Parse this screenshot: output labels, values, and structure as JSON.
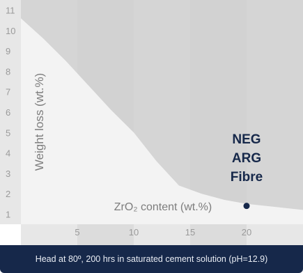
{
  "chart_data": {
    "type": "area",
    "x_axis_label": "ZrO₂ content (wt.%)",
    "y_axis_label": "Weight loss (wt.%)",
    "x_ticks": [
      5,
      10,
      15,
      20
    ],
    "y_ticks": [
      1,
      2,
      3,
      4,
      5,
      6,
      7,
      8,
      9,
      10,
      11
    ],
    "xlim": [
      0,
      25
    ],
    "ylim": [
      0.5,
      11.5
    ],
    "series": [
      {
        "points": [
          [
            0,
            10.6
          ],
          [
            2,
            9.6
          ],
          [
            4,
            8.5
          ],
          [
            6,
            7.3
          ],
          [
            8,
            6.1
          ],
          [
            10,
            5.0
          ],
          [
            12,
            3.6
          ],
          [
            14,
            2.4
          ],
          [
            16,
            2.0
          ],
          [
            18,
            1.7
          ],
          [
            20,
            1.5
          ],
          [
            25,
            1.2
          ]
        ]
      }
    ],
    "highlight_point": {
      "x": 20,
      "y": 1.4,
      "label_lines": [
        "NEG",
        "ARG",
        "Fibre"
      ]
    },
    "colors": {
      "background_band_light": "#e7e7e7",
      "background_band_dark": "#dcdcdc",
      "area_fill": "#f3f3f3",
      "shade_fill": "#cfcfcf",
      "tick_text": "#9a9a9a",
      "label_text": "#7d7d7d",
      "point": "#16284a",
      "point_label": "#16284a",
      "footer_bg": "#16284a"
    }
  },
  "footer_note": "Head at 80º, 200 hrs in saturated cement solution (pH=12.9)"
}
